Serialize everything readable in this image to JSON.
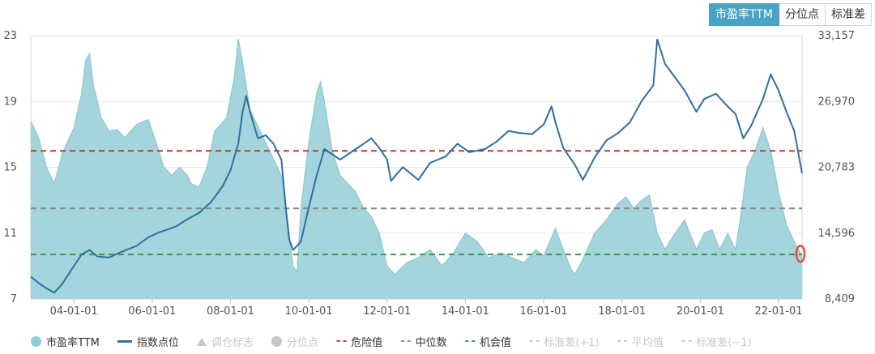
{
  "tabs": [
    {
      "label": "市盈率TTM",
      "active": true
    },
    {
      "label": "分位点",
      "active": false
    },
    {
      "label": "标准差",
      "active": false
    }
  ],
  "legend": [
    {
      "label": "市盈率TTM",
      "symbol": "dot",
      "color": "#8fccd6",
      "enabled": true
    },
    {
      "label": "指数点位",
      "symbol": "bar",
      "color": "#2f6fa0",
      "enabled": true
    },
    {
      "label": "调仓标志",
      "symbol": "triangle",
      "color": "#c7c7c7",
      "enabled": false
    },
    {
      "label": "分位点",
      "symbol": "dot",
      "color": "#c7c7c7",
      "enabled": false
    },
    {
      "label": "危险值",
      "symbol": "dash",
      "color": "#c0392b",
      "enabled": true
    },
    {
      "label": "中位数",
      "symbol": "dash",
      "color": "#888888",
      "enabled": true
    },
    {
      "label": "机会值",
      "symbol": "dash",
      "color": "#3c9a4b",
      "enabled": true
    },
    {
      "label": "标准差(+1)",
      "symbol": "dash",
      "color": "#c7c7c7",
      "enabled": false
    },
    {
      "label": "平均值",
      "symbol": "dash",
      "color": "#c7c7c7",
      "enabled": false
    },
    {
      "label": "标准差(−1)",
      "symbol": "dash",
      "color": "#c7c7c7",
      "enabled": false
    }
  ],
  "chart_data": {
    "type": "area+line",
    "x_ticks": [
      "04-01-01",
      "06-01-01",
      "08-01-01",
      "10-01-01",
      "12-01-01",
      "14-01-01",
      "16-01-01",
      "18-01-01",
      "20-01-01",
      "22-01-01"
    ],
    "x_range": [
      2002.9,
      2022.6
    ],
    "y_left": {
      "range": [
        7,
        23
      ],
      "ticks": [
        "7",
        "11",
        "15",
        "19",
        "23"
      ]
    },
    "y_right": {
      "range": [
        8409,
        33157
      ],
      "ticks": [
        "8,409",
        "14,596",
        "20,783",
        "26,970",
        "33,157"
      ]
    },
    "reference_lines": {
      "danger": 16.0,
      "median": 12.5,
      "opportunity": 9.7
    },
    "colors": {
      "pe_fill": "#9fd3db",
      "pe_line": "#8fc7d2",
      "index": "#2f6fa0",
      "danger": "#c0392b",
      "median": "#888888",
      "opportunity": "#3c9a4b",
      "marker": "#e74c3c"
    },
    "series": [
      {
        "name": "市盈率TTM",
        "axis": "left",
        "points": [
          [
            2002.9,
            17.8
          ],
          [
            2003.1,
            16.8
          ],
          [
            2003.3,
            15.0
          ],
          [
            2003.5,
            14.0
          ],
          [
            2003.7,
            15.8
          ],
          [
            2004.0,
            17.4
          ],
          [
            2004.2,
            19.5
          ],
          [
            2004.3,
            21.5
          ],
          [
            2004.4,
            21.9
          ],
          [
            2004.5,
            20.0
          ],
          [
            2004.7,
            18.0
          ],
          [
            2004.9,
            17.2
          ],
          [
            2005.1,
            17.3
          ],
          [
            2005.3,
            16.8
          ],
          [
            2005.6,
            17.6
          ],
          [
            2005.9,
            17.9
          ],
          [
            2006.1,
            16.5
          ],
          [
            2006.3,
            15.0
          ],
          [
            2006.5,
            14.5
          ],
          [
            2006.7,
            15.0
          ],
          [
            2006.9,
            14.5
          ],
          [
            2007.0,
            14.0
          ],
          [
            2007.2,
            13.8
          ],
          [
            2007.4,
            15.0
          ],
          [
            2007.6,
            17.2
          ],
          [
            2007.9,
            18.0
          ],
          [
            2008.1,
            20.5
          ],
          [
            2008.2,
            22.8
          ],
          [
            2008.3,
            21.5
          ],
          [
            2008.5,
            18.5
          ],
          [
            2008.7,
            17.5
          ],
          [
            2008.9,
            16.5
          ],
          [
            2009.1,
            15.5
          ],
          [
            2009.3,
            14.5
          ],
          [
            2009.5,
            11.0
          ],
          [
            2009.6,
            9.0
          ],
          [
            2009.7,
            8.6
          ],
          [
            2009.8,
            12.5
          ],
          [
            2010.0,
            16.5
          ],
          [
            2010.2,
            19.5
          ],
          [
            2010.3,
            20.2
          ],
          [
            2010.4,
            19.0
          ],
          [
            2010.6,
            16.0
          ],
          [
            2010.8,
            14.5
          ],
          [
            2011.0,
            14.0
          ],
          [
            2011.2,
            13.5
          ],
          [
            2011.4,
            12.5
          ],
          [
            2011.6,
            12.0
          ],
          [
            2011.8,
            11.0
          ],
          [
            2012.0,
            9.0
          ],
          [
            2012.2,
            8.5
          ],
          [
            2012.5,
            9.2
          ],
          [
            2012.8,
            9.5
          ],
          [
            2013.1,
            10.0
          ],
          [
            2013.4,
            9.0
          ],
          [
            2013.7,
            9.8
          ],
          [
            2014.0,
            11.0
          ],
          [
            2014.3,
            10.5
          ],
          [
            2014.6,
            9.5
          ],
          [
            2014.9,
            9.8
          ],
          [
            2015.2,
            9.5
          ],
          [
            2015.5,
            9.2
          ],
          [
            2015.8,
            10.0
          ],
          [
            2016.0,
            9.6
          ],
          [
            2016.3,
            11.3
          ],
          [
            2016.5,
            10.0
          ],
          [
            2016.7,
            8.8
          ],
          [
            2016.8,
            8.5
          ],
          [
            2017.0,
            9.4
          ],
          [
            2017.3,
            11.0
          ],
          [
            2017.6,
            11.8
          ],
          [
            2017.9,
            12.8
          ],
          [
            2018.1,
            13.2
          ],
          [
            2018.3,
            12.5
          ],
          [
            2018.5,
            13.0
          ],
          [
            2018.7,
            13.3
          ],
          [
            2018.9,
            11.0
          ],
          [
            2019.1,
            10.0
          ],
          [
            2019.3,
            10.8
          ],
          [
            2019.6,
            11.8
          ],
          [
            2019.9,
            10.0
          ],
          [
            2020.1,
            11.0
          ],
          [
            2020.3,
            11.2
          ],
          [
            2020.5,
            10.0
          ],
          [
            2020.7,
            11.0
          ],
          [
            2020.9,
            10.0
          ],
          [
            2021.0,
            11.5
          ],
          [
            2021.2,
            15.0
          ],
          [
            2021.4,
            16.0
          ],
          [
            2021.6,
            17.4
          ],
          [
            2021.8,
            16.0
          ],
          [
            2022.0,
            13.5
          ],
          [
            2022.2,
            11.5
          ],
          [
            2022.4,
            10.5
          ],
          [
            2022.6,
            9.6
          ]
        ]
      },
      {
        "name": "指数点位",
        "axis": "right",
        "points": [
          [
            2002.9,
            10500
          ],
          [
            2003.1,
            9900
          ],
          [
            2003.3,
            9400
          ],
          [
            2003.5,
            9000
          ],
          [
            2003.7,
            9800
          ],
          [
            2004.0,
            11500
          ],
          [
            2004.2,
            12600
          ],
          [
            2004.4,
            13000
          ],
          [
            2004.6,
            12400
          ],
          [
            2004.9,
            12300
          ],
          [
            2005.2,
            12800
          ],
          [
            2005.6,
            13400
          ],
          [
            2005.9,
            14200
          ],
          [
            2006.2,
            14700
          ],
          [
            2006.6,
            15200
          ],
          [
            2006.9,
            15900
          ],
          [
            2007.2,
            16500
          ],
          [
            2007.5,
            17500
          ],
          [
            2007.8,
            19000
          ],
          [
            2008.0,
            20500
          ],
          [
            2008.2,
            23000
          ],
          [
            2008.3,
            25800
          ],
          [
            2008.4,
            27500
          ],
          [
            2008.5,
            26000
          ],
          [
            2008.7,
            23500
          ],
          [
            2008.9,
            23800
          ],
          [
            2009.1,
            23000
          ],
          [
            2009.3,
            21500
          ],
          [
            2009.4,
            17500
          ],
          [
            2009.5,
            14000
          ],
          [
            2009.6,
            13000
          ],
          [
            2009.8,
            13800
          ],
          [
            2010.0,
            17000
          ],
          [
            2010.2,
            20000
          ],
          [
            2010.4,
            22500
          ],
          [
            2010.6,
            22000
          ],
          [
            2010.8,
            21500
          ],
          [
            2011.0,
            22000
          ],
          [
            2011.2,
            22500
          ],
          [
            2011.4,
            23000
          ],
          [
            2011.6,
            23500
          ],
          [
            2011.8,
            22600
          ],
          [
            2012.0,
            21500
          ],
          [
            2012.1,
            19500
          ],
          [
            2012.4,
            20800
          ],
          [
            2012.8,
            19600
          ],
          [
            2013.1,
            21200
          ],
          [
            2013.5,
            21800
          ],
          [
            2013.8,
            23000
          ],
          [
            2014.1,
            22200
          ],
          [
            2014.5,
            22500
          ],
          [
            2014.8,
            23200
          ],
          [
            2015.1,
            24200
          ],
          [
            2015.4,
            24000
          ],
          [
            2015.7,
            23900
          ],
          [
            2016.0,
            24800
          ],
          [
            2016.2,
            26500
          ],
          [
            2016.3,
            25000
          ],
          [
            2016.5,
            22600
          ],
          [
            2016.8,
            21000
          ],
          [
            2017.0,
            19600
          ],
          [
            2017.3,
            21700
          ],
          [
            2017.6,
            23300
          ],
          [
            2017.9,
            24000
          ],
          [
            2018.2,
            25000
          ],
          [
            2018.5,
            27000
          ],
          [
            2018.8,
            28500
          ],
          [
            2018.9,
            32800
          ],
          [
            2019.1,
            30500
          ],
          [
            2019.3,
            29500
          ],
          [
            2019.6,
            28000
          ],
          [
            2019.9,
            26000
          ],
          [
            2020.1,
            27200
          ],
          [
            2020.4,
            27700
          ],
          [
            2020.7,
            26500
          ],
          [
            2020.9,
            25800
          ],
          [
            2021.1,
            23500
          ],
          [
            2021.3,
            24700
          ],
          [
            2021.6,
            27200
          ],
          [
            2021.8,
            29500
          ],
          [
            2022.0,
            28000
          ],
          [
            2022.2,
            26000
          ],
          [
            2022.4,
            24200
          ],
          [
            2022.6,
            20200
          ]
        ]
      }
    ]
  }
}
